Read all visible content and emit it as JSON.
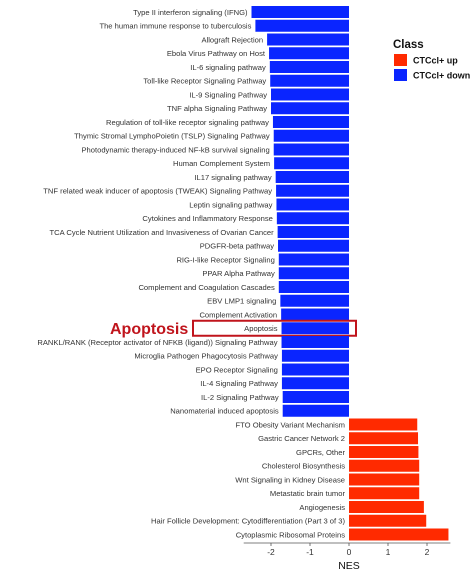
{
  "chart_data": {
    "type": "bar",
    "orientation": "horizontal",
    "xlabel": "NES",
    "xlim": [
      -2.7,
      2.6
    ],
    "xticks": [
      -2,
      -1,
      0,
      1,
      2
    ],
    "legend": {
      "title": "Class",
      "position": "top-right",
      "entries": [
        {
          "label": "CTCcl+ up",
          "color": "#ff2a00"
        },
        {
          "label": "CTCcl+ down",
          "color": "#0a25ff"
        }
      ]
    },
    "annotation": {
      "text": "Apoptosis",
      "target": "Apoptosis",
      "color": "#c0141c"
    },
    "bars": [
      {
        "label": "Type II interferon signaling (IFNG)",
        "nes": -2.5,
        "class": "down"
      },
      {
        "label": "The human immune response to tuberculosis",
        "nes": -2.4,
        "class": "down"
      },
      {
        "label": "Allograft Rejection",
        "nes": -2.1,
        "class": "down"
      },
      {
        "label": "Ebola Virus Pathway on Host",
        "nes": -2.05,
        "class": "down"
      },
      {
        "label": "IL-6 signaling pathway",
        "nes": -2.03,
        "class": "down"
      },
      {
        "label": "Toll-like Receptor Signaling Pathway",
        "nes": -2.02,
        "class": "down"
      },
      {
        "label": "IL-9 Signaling Pathway",
        "nes": -2.0,
        "class": "down"
      },
      {
        "label": "TNF alpha Signaling Pathway",
        "nes": -2.0,
        "class": "down"
      },
      {
        "label": "Regulation of toll-like receptor signaling pathway",
        "nes": -1.95,
        "class": "down"
      },
      {
        "label": "Thymic Stromal LymphoPoietin (TSLP) Signaling Pathway",
        "nes": -1.93,
        "class": "down"
      },
      {
        "label": "Photodynamic therapy-induced NF-kB survival signaling",
        "nes": -1.93,
        "class": "down"
      },
      {
        "label": "Human Complement System",
        "nes": -1.92,
        "class": "down"
      },
      {
        "label": "IL17 signaling pathway",
        "nes": -1.88,
        "class": "down"
      },
      {
        "label": "TNF related weak inducer of apoptosis (TWEAK) Signaling Pathway",
        "nes": -1.87,
        "class": "down"
      },
      {
        "label": "Leptin signaling pathway",
        "nes": -1.86,
        "class": "down"
      },
      {
        "label": "Cytokines and Inflammatory Response",
        "nes": -1.85,
        "class": "down"
      },
      {
        "label": "TCA Cycle Nutrient Utilization and Invasiveness of Ovarian Cancer",
        "nes": -1.83,
        "class": "down"
      },
      {
        "label": "PDGFR-beta pathway",
        "nes": -1.82,
        "class": "down"
      },
      {
        "label": "RIG-I-like Receptor Signaling",
        "nes": -1.8,
        "class": "down"
      },
      {
        "label": "PPAR Alpha Pathway",
        "nes": -1.8,
        "class": "down"
      },
      {
        "label": "Complement and Coagulation Cascades",
        "nes": -1.8,
        "class": "down"
      },
      {
        "label": "EBV LMP1 signaling",
        "nes": -1.76,
        "class": "down"
      },
      {
        "label": "Complement Activation",
        "nes": -1.74,
        "class": "down"
      },
      {
        "label": "Apoptosis",
        "nes": -1.73,
        "class": "down"
      },
      {
        "label": "RANKL/RANK (Receptor activator of NFKB (ligand)) Signaling Pathway",
        "nes": -1.73,
        "class": "down"
      },
      {
        "label": "Microglia Pathogen Phagocytosis Pathway",
        "nes": -1.72,
        "class": "down"
      },
      {
        "label": "EPO Receptor Signaling",
        "nes": -1.72,
        "class": "down"
      },
      {
        "label": "IL-4 Signaling Pathway",
        "nes": -1.72,
        "class": "down"
      },
      {
        "label": "IL-2 Signaling Pathway",
        "nes": -1.7,
        "class": "down"
      },
      {
        "label": "Nanomaterial induced apoptosis",
        "nes": -1.7,
        "class": "down"
      },
      {
        "label": "FTO Obesity Variant Mechanism",
        "nes": 1.75,
        "class": "up"
      },
      {
        "label": "Gastric Cancer Network 2",
        "nes": 1.77,
        "class": "up"
      },
      {
        "label": "GPCRs, Other",
        "nes": 1.78,
        "class": "up"
      },
      {
        "label": "Cholesterol Biosynthesis",
        "nes": 1.8,
        "class": "up"
      },
      {
        "label": "Wnt Signaling in Kidney Disease",
        "nes": 1.8,
        "class": "up"
      },
      {
        "label": "Metastatic brain tumor",
        "nes": 1.8,
        "class": "up"
      },
      {
        "label": "Angiogenesis",
        "nes": 1.92,
        "class": "up"
      },
      {
        "label": "Hair Follicle Development: Cytodifferentiation (Part 3 of 3)",
        "nes": 1.98,
        "class": "up"
      },
      {
        "label": "Cytoplasmic Ribosomal Proteins",
        "nes": 2.55,
        "class": "up"
      }
    ]
  }
}
